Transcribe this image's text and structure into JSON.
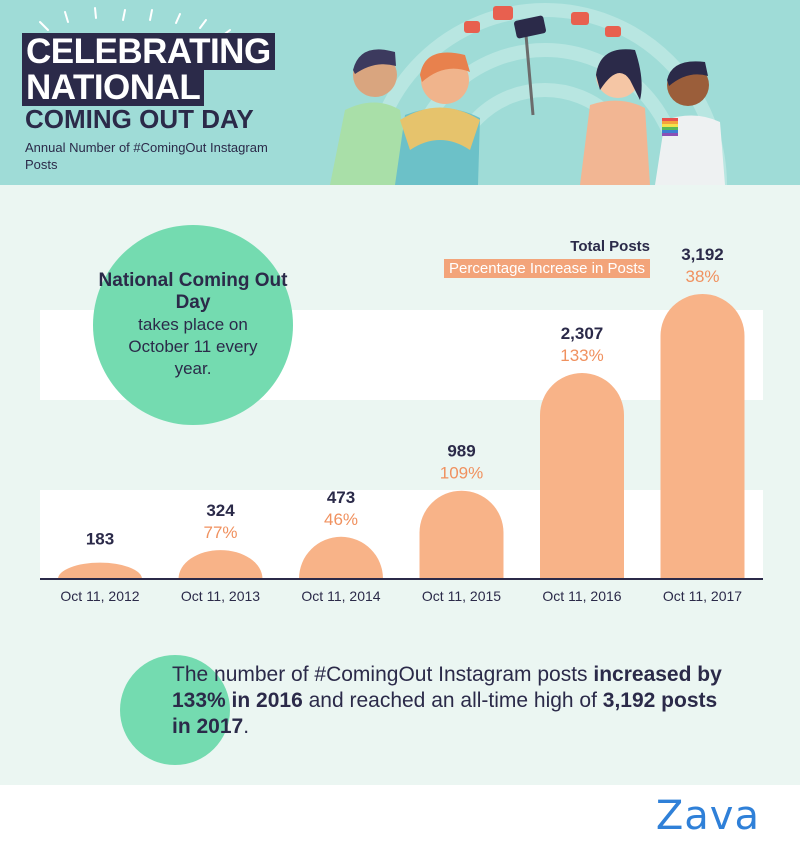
{
  "header": {
    "title_line1": "CELEBRATING",
    "title_line2": "NATIONAL",
    "title_line3": "COMING OUT DAY",
    "subtitle": "Annual Number of #ComingOut Instagram Posts"
  },
  "info": {
    "bold": "National Coming Out Day",
    "text": "takes place on October 11 every year."
  },
  "legend": {
    "total": "Total Posts",
    "pct": "Percentage Increase in Posts"
  },
  "summary": {
    "part1": "The number of #ComingOut Instagram posts ",
    "bold1": "increased by 133% in 2016",
    "part2": " and reached an all-time high of ",
    "bold2": "3,192 posts in 2017",
    "part3": "."
  },
  "logo": "Zava",
  "colors": {
    "bar": "#f8b388",
    "percent": "#f0915f",
    "navy": "#2b2a49",
    "accent_green": "#74dbb0",
    "header_bg": "#9fdcd7",
    "logo_blue": "#2f80d8"
  },
  "chart_data": {
    "type": "bar",
    "categories": [
      "Oct 11, 2012",
      "Oct 11, 2013",
      "Oct 11, 2014",
      "Oct 11, 2015",
      "Oct 11, 2016",
      "Oct 11, 2017"
    ],
    "series": [
      {
        "name": "Total Posts",
        "values": [
          183,
          324,
          473,
          989,
          2307,
          3192
        ]
      },
      {
        "name": "Percentage Increase in Posts",
        "values": [
          null,
          77,
          46,
          109,
          133,
          38
        ]
      }
    ],
    "value_labels": [
      "183",
      "324",
      "473",
      "989",
      "2,307",
      "3,192"
    ],
    "percent_labels": [
      "",
      "77%",
      "46%",
      "109%",
      "133%",
      "38%"
    ],
    "ylim": [
      0,
      3192
    ],
    "legend": "top-right"
  }
}
